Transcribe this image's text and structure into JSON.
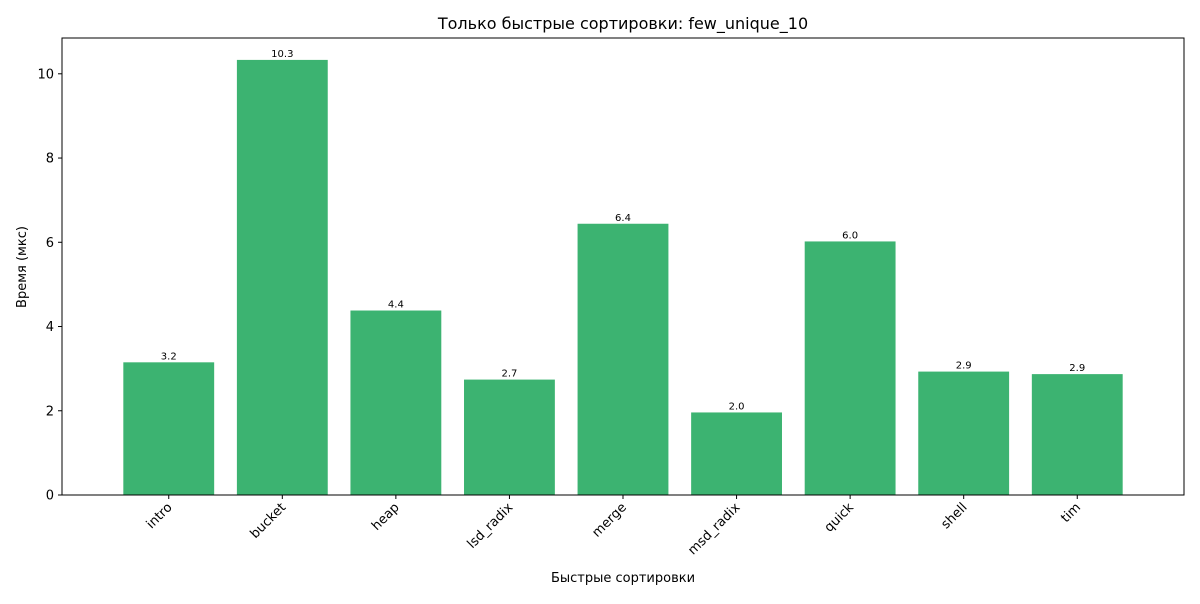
{
  "chart_data": {
    "type": "bar",
    "title": "Только быстрые сортировки: few_unique_10",
    "xlabel": "Быстрые сортировки",
    "ylabel": "Время (мкс)",
    "categories": [
      "intro",
      "bucket",
      "heap",
      "lsd_radix",
      "merge",
      "msd_radix",
      "quick",
      "shell",
      "tim"
    ],
    "values": [
      3.15,
      10.33,
      4.38,
      2.74,
      6.44,
      1.96,
      6.02,
      2.93,
      2.87
    ],
    "value_labels": [
      "3.2",
      "10.3",
      "4.4",
      "2.7",
      "6.4",
      "2.0",
      "6.0",
      "2.9",
      "2.9"
    ],
    "yticks": [
      0,
      2,
      4,
      6,
      8,
      10
    ],
    "ylim": [
      0,
      10.85
    ],
    "grid": false,
    "bar_color": "#3cb371"
  }
}
